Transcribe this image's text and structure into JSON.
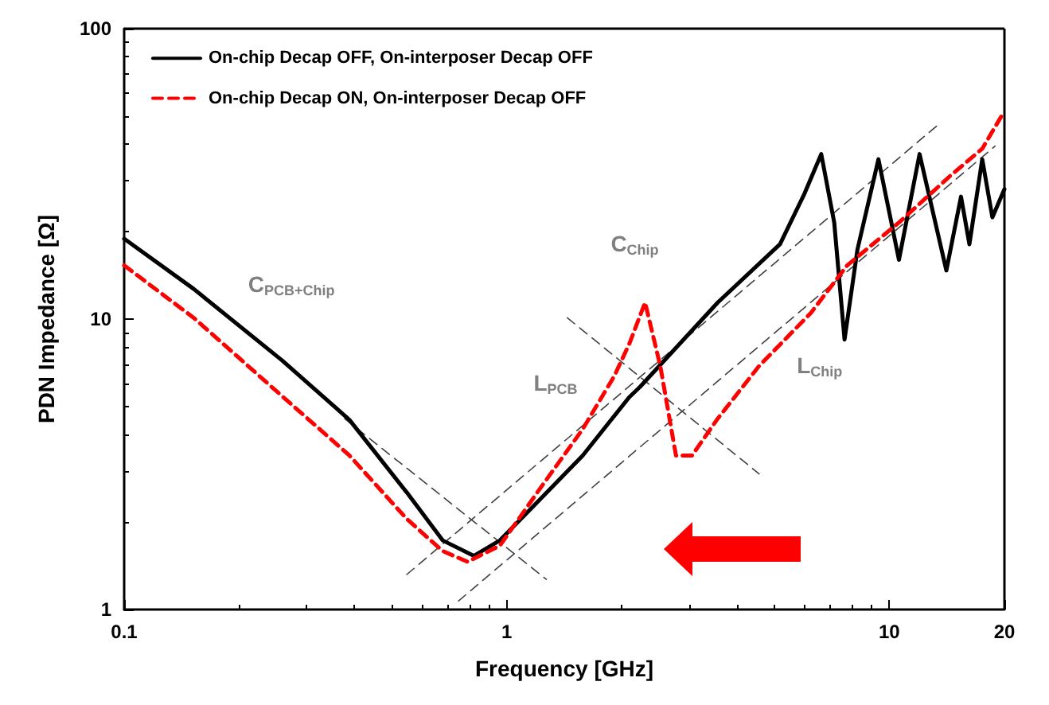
{
  "chart_data": {
    "type": "line",
    "xlabel": "Frequency [GHz]",
    "ylabel": "PDN Impedance [Ω]",
    "log": "xy",
    "xlim": [
      0.1,
      20
    ],
    "xticks": [
      0.1,
      1,
      10,
      20
    ],
    "ylim": [
      1,
      100
    ],
    "yticks": [
      1,
      10,
      100
    ],
    "legend": "top left",
    "grid": false,
    "marker": "none",
    "series": [
      {
        "name": "On-chip Decap OFF, On-interposer Decap OFF",
        "color": "#000000",
        "line_style": "solid",
        "x": [
          0.1,
          0.152,
          0.259,
          0.388,
          0.548,
          0.68,
          0.82,
          0.96,
          1.16,
          1.58,
          2.09,
          2.23,
          3.56,
          5.18,
          6.0,
          6.64,
          7.18,
          7.64,
          8.26,
          9.37,
          10.6,
          12.0,
          14.1,
          15.4,
          16.2,
          17.5,
          18.6,
          20
        ],
        "values": [
          18.9,
          12.7,
          7.2,
          4.5,
          2.53,
          1.73,
          1.53,
          1.73,
          2.23,
          3.39,
          5.38,
          5.84,
          11.4,
          18.1,
          27,
          37,
          21.5,
          8.5,
          17.4,
          35.5,
          16,
          37,
          14.7,
          26.4,
          18.1,
          35.5,
          22.4,
          28
        ]
      },
      {
        "name": "On-chip Decap ON, On-interposer Decap OFF",
        "color": "#ff0000",
        "line_style": "dashed",
        "x": [
          0.1,
          0.152,
          0.243,
          0.388,
          0.548,
          0.68,
          0.79,
          0.96,
          1.23,
          1.58,
          1.91,
          2.09,
          2.3,
          2.52,
          2.77,
          3.05,
          3.56,
          4.57,
          6.24,
          7.76,
          10.6,
          14.5,
          17.5,
          20
        ],
        "values": [
          15.3,
          10.1,
          5.84,
          3.39,
          2.05,
          1.59,
          1.46,
          1.66,
          2.64,
          4.18,
          6.36,
          8.2,
          11.4,
          6.9,
          3.39,
          3.39,
          4.54,
          6.9,
          10.5,
          15.3,
          21.5,
          31.3,
          38.6,
          52
        ]
      },
      {
        "color": "#404040",
        "line_style": "dashed",
        "x": [
          0.377,
          1.27
        ],
        "values": [
          4.54,
          1.27
        ]
      },
      {
        "color": "#404040",
        "line_style": "dashed",
        "x": [
          0.548,
          13.4
        ],
        "values": [
          1.32,
          46.6
        ]
      },
      {
        "color": "#404040",
        "line_style": "dashed",
        "x": [
          0.748,
          18.9
        ],
        "values": [
          1.07,
          39.4
        ]
      },
      {
        "color": "#404040",
        "line_style": "dashed",
        "x": [
          1.44,
          4.57
        ],
        "values": [
          10.1,
          2.93
        ]
      }
    ],
    "annotations": [
      "C$_{PCB+Chip}$",
      "C$_{Chip}$",
      "L$_{PCB}$",
      "L$_{Chip}$"
    ]
  }
}
